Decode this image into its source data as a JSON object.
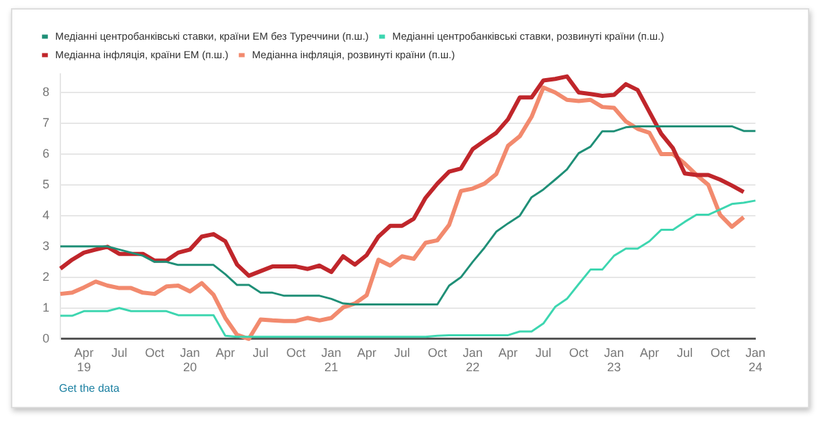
{
  "chart_data": {
    "type": "line",
    "legend": "top left",
    "grid": "y",
    "marker": "none",
    "ylim": [
      0,
      8.6
    ],
    "yticks": [
      0,
      1,
      2,
      3,
      4,
      5,
      6,
      7,
      8
    ],
    "categories": [
      null,
      null,
      "Apr 19",
      null,
      null,
      "Jul",
      null,
      null,
      "Oct",
      null,
      null,
      "Jan 20",
      null,
      null,
      "Apr",
      null,
      null,
      "Jul",
      null,
      null,
      "Oct",
      null,
      null,
      "Jan 21",
      null,
      null,
      "Apr",
      null,
      null,
      "Jul",
      null,
      null,
      "Oct",
      null,
      null,
      "Jan 22",
      null,
      null,
      "Apr",
      null,
      null,
      "Jul",
      null,
      null,
      "Oct",
      null,
      null,
      "Jan 23",
      null,
      null,
      "Apr",
      null,
      null,
      "Jul",
      null,
      null,
      "Oct",
      null,
      null,
      "Jan 24"
    ],
    "series": [
      {
        "name": "Медіанні центробанківські ставки, країни ЕМ без Туреччини (п.ш.)",
        "color": "#1f8f77",
        "values": [
          3.0,
          3.0,
          3.0,
          3.0,
          3.0,
          2.9,
          2.8,
          2.7,
          2.5,
          2.5,
          2.4,
          2.4,
          2.4,
          2.4,
          2.1,
          1.75,
          1.75,
          1.5,
          1.5,
          1.4,
          1.4,
          1.4,
          1.4,
          1.3,
          1.15,
          1.12,
          1.12,
          1.12,
          1.12,
          1.12,
          1.12,
          1.12,
          1.12,
          1.73,
          2.0,
          2.5,
          2.96,
          3.48,
          3.75,
          4.0,
          4.6,
          4.85,
          5.17,
          5.5,
          6.03,
          6.24,
          6.74,
          6.74,
          6.87,
          6.9,
          6.9,
          6.9,
          6.9,
          6.9,
          6.9,
          6.9,
          6.9,
          6.9,
          6.75,
          6.75
        ]
      },
      {
        "name": "Медіанні центробанківські ставки, розвинуті країни (п.ш.)",
        "color": "#3dd6b0",
        "values": [
          0.75,
          0.75,
          0.9,
          0.9,
          0.9,
          1.0,
          0.9,
          0.9,
          0.9,
          0.9,
          0.77,
          0.77,
          0.77,
          0.77,
          0.1,
          0.07,
          0.07,
          0.07,
          0.07,
          0.07,
          0.07,
          0.07,
          0.07,
          0.07,
          0.07,
          0.07,
          0.07,
          0.07,
          0.07,
          0.07,
          0.07,
          0.07,
          0.1,
          0.12,
          0.12,
          0.12,
          0.12,
          0.12,
          0.12,
          0.24,
          0.24,
          0.5,
          1.04,
          1.3,
          1.78,
          2.25,
          2.25,
          2.7,
          2.93,
          2.93,
          3.17,
          3.54,
          3.54,
          3.8,
          4.03,
          4.03,
          4.2,
          4.38,
          4.42,
          4.49
        ]
      },
      {
        "name": "Медіанна інфляція, країни ЕМ (п.ш.)",
        "color": "#c0262b",
        "values": [
          2.28,
          2.57,
          2.8,
          2.9,
          2.99,
          2.76,
          2.76,
          2.76,
          2.54,
          2.54,
          2.8,
          2.9,
          3.32,
          3.4,
          3.17,
          2.41,
          2.05,
          2.2,
          2.35,
          2.35,
          2.35,
          2.27,
          2.38,
          2.17,
          2.68,
          2.41,
          2.72,
          3.32,
          3.67,
          3.67,
          3.9,
          4.58,
          5.04,
          5.43,
          5.53,
          6.16,
          6.43,
          6.69,
          7.13,
          7.84,
          7.84,
          8.39,
          8.44,
          8.52,
          8.0,
          7.95,
          7.89,
          7.92,
          8.27,
          8.08,
          7.37,
          6.66,
          6.19,
          5.37,
          5.32,
          5.32,
          5.17,
          4.98,
          4.77,
          null
        ]
      },
      {
        "name": "Медіанна інфляція, розвинуті країни (п.ш.)",
        "color": "#f28a6e",
        "values": [
          1.46,
          1.5,
          1.67,
          1.86,
          1.73,
          1.65,
          1.65,
          1.5,
          1.46,
          1.7,
          1.73,
          1.54,
          1.81,
          1.43,
          0.68,
          0.13,
          0.0,
          0.63,
          0.6,
          0.58,
          0.58,
          0.68,
          0.6,
          0.68,
          1.02,
          1.15,
          1.42,
          2.57,
          2.38,
          2.68,
          2.6,
          3.12,
          3.2,
          3.7,
          4.8,
          4.88,
          5.04,
          5.35,
          6.27,
          6.58,
          7.21,
          8.16,
          8.0,
          7.76,
          7.72,
          7.76,
          7.53,
          7.5,
          7.06,
          6.82,
          6.69,
          6.0,
          6.0,
          5.69,
          5.32,
          5.0,
          4.03,
          3.64,
          3.95,
          null
        ]
      }
    ],
    "annotations": [
      "Get the data"
    ]
  }
}
